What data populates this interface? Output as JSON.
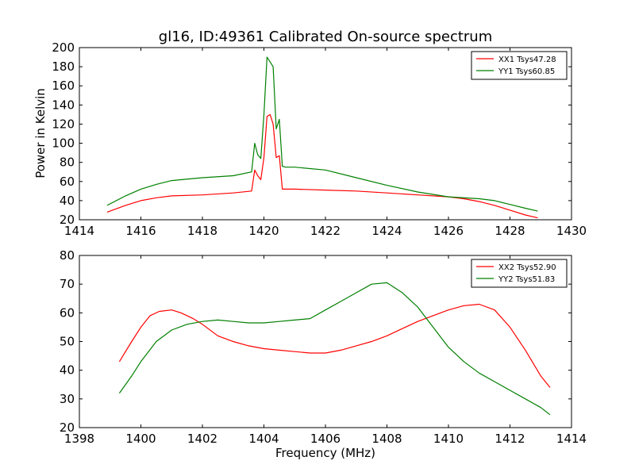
{
  "chart_data": [
    {
      "type": "line",
      "title": "gl16, ID:49361 Calibrated On-source spectrum",
      "xlabel": "",
      "ylabel": "Power in Kelvin",
      "xlim": [
        1414,
        1430
      ],
      "ylim": [
        20,
        200
      ],
      "xticks": [
        "1414",
        "1416",
        "1418",
        "1420",
        "1422",
        "1424",
        "1426",
        "1428",
        "1430"
      ],
      "yticks": [
        "20",
        "40",
        "60",
        "80",
        "100",
        "120",
        "140",
        "160",
        "180",
        "200"
      ],
      "grid": false,
      "legend_position": "top-right",
      "series": [
        {
          "name": "XX1 Tsys47.28",
          "color": "#ff0000",
          "x": [
            1414.9,
            1415.5,
            1416,
            1416.5,
            1417,
            1418,
            1419,
            1419.6,
            1419.7,
            1419.8,
            1419.9,
            1420.0,
            1420.1,
            1420.2,
            1420.3,
            1420.4,
            1420.5,
            1420.6,
            1420.7,
            1421,
            1422,
            1423,
            1424,
            1425,
            1426,
            1426.5,
            1427,
            1427.5,
            1428,
            1428.5,
            1428.9
          ],
          "y": [
            28,
            35,
            40,
            43,
            45,
            46,
            48,
            50,
            72,
            66,
            62,
            85,
            128,
            130,
            120,
            85,
            87,
            52,
            52,
            52,
            51,
            50,
            48,
            46,
            44,
            42,
            39,
            35,
            30,
            25,
            22
          ]
        },
        {
          "name": "YY1 Tsys60.85",
          "color": "#008000",
          "x": [
            1414.9,
            1415.5,
            1416,
            1416.5,
            1417,
            1418,
            1419,
            1419.6,
            1419.7,
            1419.8,
            1419.9,
            1420.0,
            1420.1,
            1420.2,
            1420.3,
            1420.4,
            1420.5,
            1420.6,
            1420.7,
            1421,
            1422,
            1423,
            1424,
            1425,
            1426,
            1427,
            1427.5,
            1428,
            1428.5,
            1428.9
          ],
          "y": [
            35,
            45,
            52,
            57,
            61,
            64,
            66,
            70,
            100,
            88,
            84,
            130,
            190,
            185,
            180,
            115,
            125,
            76,
            75,
            75,
            72,
            64,
            56,
            49,
            44,
            42,
            40,
            36,
            32,
            29
          ]
        }
      ]
    },
    {
      "type": "line",
      "title": "",
      "xlabel": "Frequency (MHz)",
      "ylabel": "",
      "xlim": [
        1398,
        1414
      ],
      "ylim": [
        20,
        80
      ],
      "xticks": [
        "1398",
        "1400",
        "1402",
        "1404",
        "1406",
        "1408",
        "1410",
        "1412",
        "1414"
      ],
      "yticks": [
        "20",
        "30",
        "40",
        "50",
        "60",
        "70",
        "80"
      ],
      "grid": false,
      "legend_position": "top-right",
      "series": [
        {
          "name": "XX2 Tsys52.90",
          "color": "#ff0000",
          "x": [
            1399.3,
            1399.7,
            1400,
            1400.3,
            1400.6,
            1401,
            1401.3,
            1401.7,
            1402,
            1402.5,
            1403,
            1403.5,
            1404,
            1404.5,
            1405,
            1405.5,
            1406,
            1406.5,
            1407,
            1407.5,
            1408,
            1408.5,
            1409,
            1409.5,
            1410,
            1410.5,
            1411,
            1411.5,
            1412,
            1412.5,
            1413,
            1413.3
          ],
          "y": [
            43,
            50,
            55,
            59,
            60.5,
            61,
            60,
            58,
            56,
            52,
            50,
            48.5,
            47.5,
            47,
            46.5,
            46,
            46,
            47,
            48.5,
            50,
            52,
            54.5,
            57,
            59,
            61,
            62.5,
            63,
            61,
            55,
            47,
            38,
            34
          ]
        },
        {
          "name": "YY2 Tsys51.83",
          "color": "#008000",
          "x": [
            1399.3,
            1399.7,
            1400,
            1400.5,
            1401,
            1401.5,
            1402,
            1402.5,
            1403,
            1403.5,
            1404,
            1404.5,
            1405,
            1405.5,
            1406,
            1406.5,
            1407,
            1407.5,
            1408,
            1408.5,
            1409,
            1409.5,
            1410,
            1410.5,
            1411,
            1411.5,
            1412,
            1412.5,
            1413,
            1413.3
          ],
          "y": [
            32,
            38,
            43,
            50,
            54,
            56,
            57,
            57.5,
            57,
            56.5,
            56.5,
            57,
            57.5,
            58,
            61,
            64,
            67,
            70,
            70.5,
            67,
            62,
            55,
            48,
            43,
            39,
            36,
            33,
            30,
            27,
            24.5
          ]
        }
      ]
    }
  ]
}
